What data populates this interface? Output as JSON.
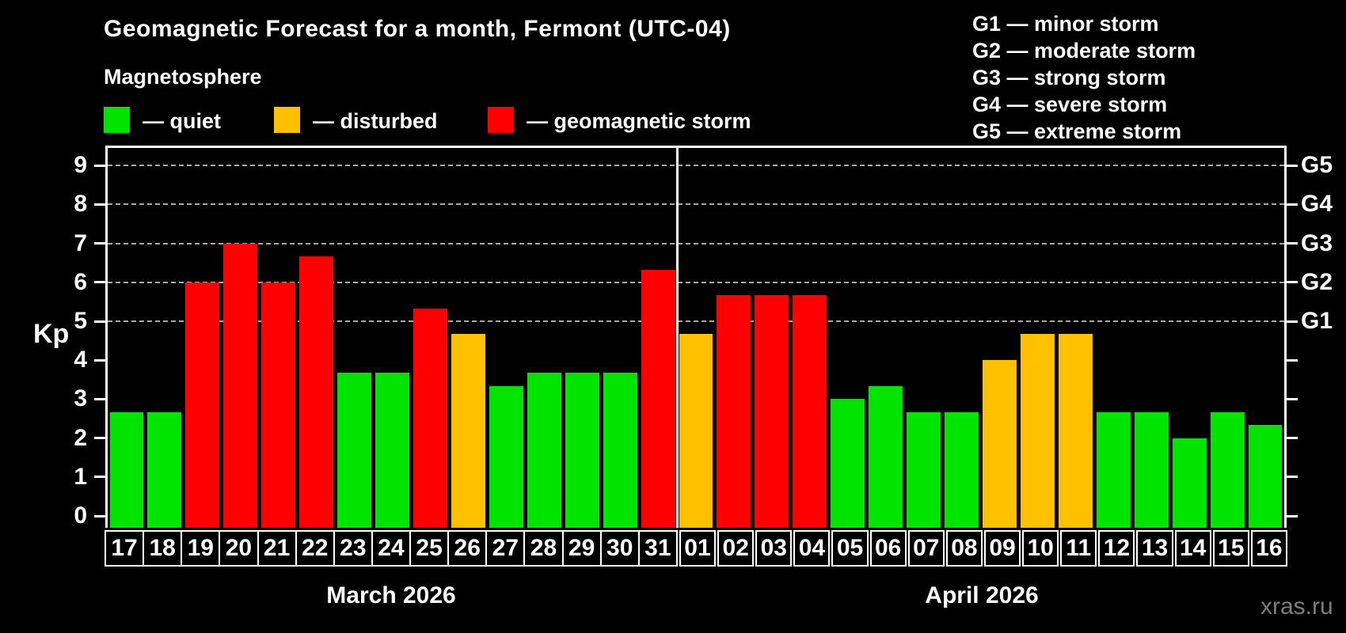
{
  "title": "Geomagnetic Forecast for a month, Fermont (UTC-04)",
  "subtitle": "Magnetosphere",
  "legend": {
    "quiet_label": "— quiet",
    "disturbed_label": "— disturbed",
    "storm_label": "— geomagnetic storm"
  },
  "g_scale_legend": [
    "G1 — minor storm",
    "G2 — moderate storm",
    "G3 — strong storm",
    "G4 — severe storm",
    "G5 — extreme storm"
  ],
  "watermark": "xras.ru",
  "colors": {
    "quiet": "#00e400",
    "disturbed": "#ffc000",
    "storm": "#ff0000",
    "grid": "#a8a8a8",
    "axis": "#ffffff",
    "background": "#000000",
    "watermark": "#7d7d7d"
  },
  "chart_data": {
    "type": "bar",
    "title": "Geomagnetic Forecast for a month, Fermont (UTC-04)",
    "ylabel": "Kp",
    "ylim": [
      0,
      9.7
    ],
    "y_ticks": [
      0,
      1,
      2,
      3,
      4,
      5,
      6,
      7,
      8,
      9
    ],
    "gridlines_at": [
      5,
      6,
      7,
      8,
      9
    ],
    "grid": "dashed, only at G-storm levels 5-9",
    "legend_position": "top-left",
    "right_axis_labels": [
      {
        "label": "G1",
        "value": 5
      },
      {
        "label": "G2",
        "value": 6
      },
      {
        "label": "G3",
        "value": 7
      },
      {
        "label": "G4",
        "value": 8
      },
      {
        "label": "G5",
        "value": 9
      }
    ],
    "months": [
      {
        "label": "March 2026",
        "days": 15
      },
      {
        "label": "April 2026",
        "days": 16
      }
    ],
    "categories": [
      "17",
      "18",
      "19",
      "20",
      "21",
      "22",
      "23",
      "24",
      "25",
      "26",
      "27",
      "28",
      "29",
      "30",
      "31",
      "01",
      "02",
      "03",
      "04",
      "05",
      "06",
      "07",
      "08",
      "09",
      "10",
      "11",
      "12",
      "13",
      "14",
      "15",
      "16"
    ],
    "values": [
      2.67,
      2.67,
      6.0,
      7.0,
      6.0,
      6.67,
      3.67,
      3.67,
      5.33,
      4.67,
      3.33,
      3.67,
      3.67,
      3.67,
      6.33,
      4.67,
      5.67,
      5.67,
      5.67,
      3.0,
      3.33,
      2.67,
      2.67,
      4.0,
      4.67,
      4.67,
      2.67,
      2.67,
      2.0,
      2.67,
      2.33
    ],
    "statuses": [
      "quiet",
      "quiet",
      "storm",
      "storm",
      "storm",
      "storm",
      "quiet",
      "quiet",
      "storm",
      "disturbed",
      "quiet",
      "quiet",
      "quiet",
      "quiet",
      "storm",
      "disturbed",
      "storm",
      "storm",
      "storm",
      "quiet",
      "quiet",
      "quiet",
      "quiet",
      "disturbed",
      "disturbed",
      "disturbed",
      "quiet",
      "quiet",
      "quiet",
      "quiet",
      "quiet"
    ]
  }
}
